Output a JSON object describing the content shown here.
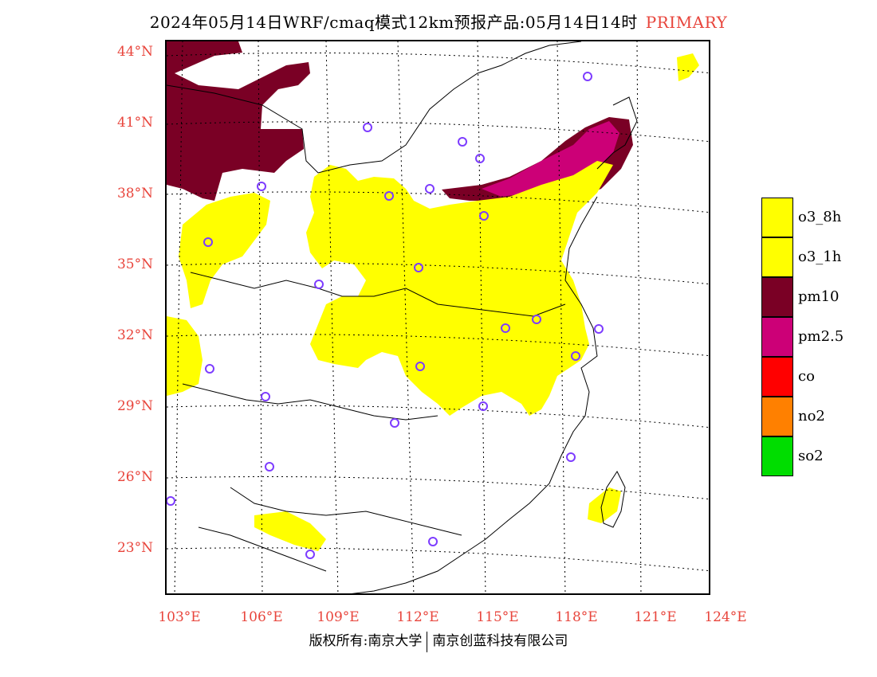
{
  "title": {
    "main": "2024年05月14日WRF/cmaq模式12km预报产品:05月14日14时",
    "tag": "PRIMARY",
    "tag_color": "#e8453c"
  },
  "map": {
    "lat_labels": [
      "44°N",
      "41°N",
      "38°N",
      "35°N",
      "32°N",
      "29°N",
      "26°N",
      "23°N"
    ],
    "lon_labels": [
      "103°E",
      "106°E",
      "109°E",
      "112°E",
      "115°E",
      "118°E",
      "121°E",
      "124°E"
    ],
    "label_color": "#e8453c",
    "grid_style": "dotted"
  },
  "legend": {
    "items": [
      {
        "label": "o3_8h",
        "color": "#ffff00"
      },
      {
        "label": "o3_1h",
        "color": "#ffff00"
      },
      {
        "label": "pm10",
        "color": "#7a0025"
      },
      {
        "label": "pm2.5",
        "color": "#cc0077"
      },
      {
        "label": "co",
        "color": "#ff0000"
      },
      {
        "label": "no2",
        "color": "#ff8000"
      },
      {
        "label": "so2",
        "color": "#00dd00"
      }
    ]
  },
  "footer": {
    "left": "版权所有:南京大学",
    "right": "南京创蓝科技有限公司"
  }
}
